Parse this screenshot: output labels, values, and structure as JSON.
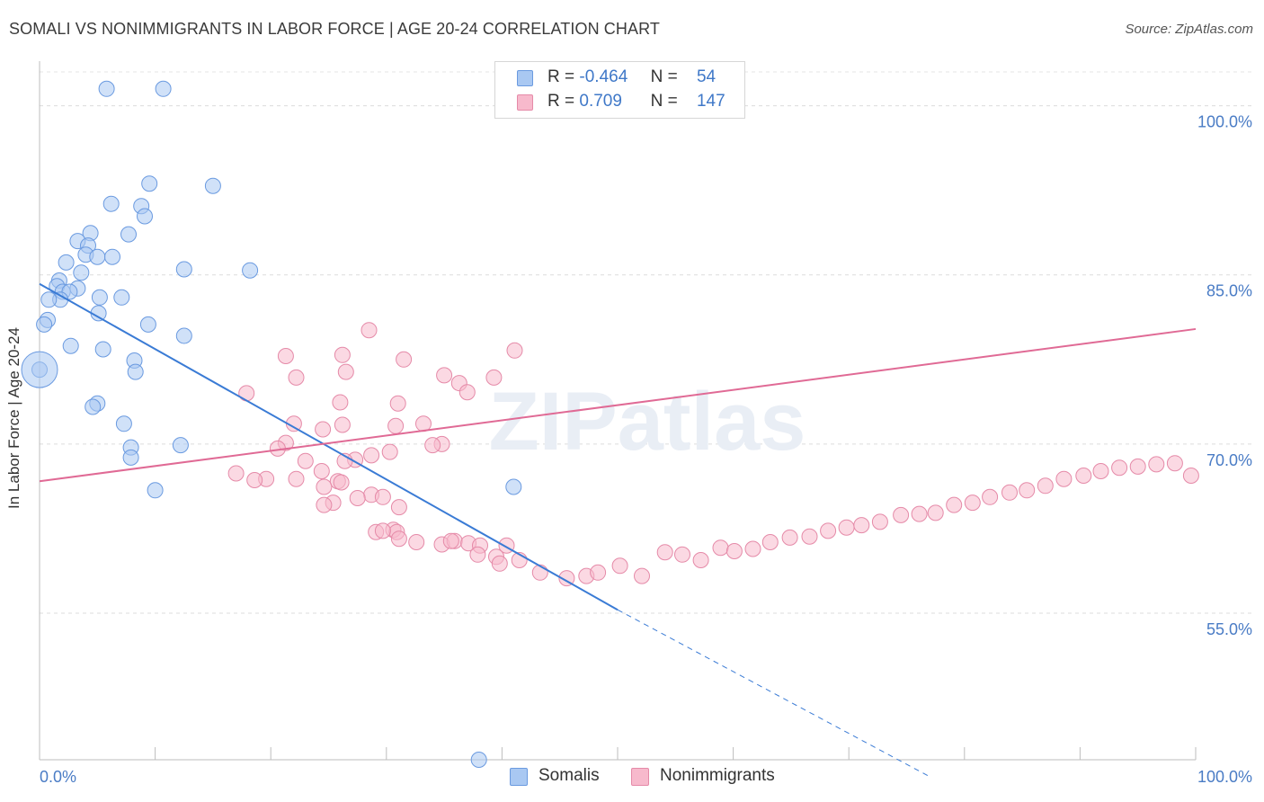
{
  "header": {
    "title": "SOMALI VS NONIMMIGRANTS IN LABOR FORCE | AGE 20-24 CORRELATION CHART",
    "source": "Source: ZipAtlas.com"
  },
  "legend": {
    "rows": [
      {
        "r_label": "R =",
        "r_value": "-0.464",
        "n_label": "N =",
        "n_value": "54",
        "color": "#a9c8f2",
        "border": "#6a9ae0"
      },
      {
        "r_label": "R =",
        "r_value": "0.709",
        "n_label": "N =",
        "n_value": "147",
        "color": "#f7b9cc",
        "border": "#e58aa8"
      }
    ]
  },
  "bottom_legend": {
    "items": [
      {
        "label": "Somalis",
        "color": "#a9c8f2",
        "border": "#6a9ae0"
      },
      {
        "label": "Nonimmigrants",
        "color": "#f7b9cc",
        "border": "#e58aa8"
      }
    ]
  },
  "watermark": "ZIPatlas",
  "chart_data": {
    "type": "scatter",
    "title": "SOMALI VS NONIMMIGRANTS IN LABOR FORCE | AGE 20-24 CORRELATION CHART",
    "xlabel": "",
    "ylabel": "In Labor Force | Age 20-24",
    "xlim": [
      0,
      100
    ],
    "ylim": [
      42,
      103
    ],
    "x_tick_labels": [
      {
        "value": 0,
        "label": "0.0%"
      },
      {
        "value": 100,
        "label": "100.0%"
      }
    ],
    "y_tick_labels": [
      {
        "value": 100,
        "label": "100.0%"
      },
      {
        "value": 85,
        "label": "85.0%"
      },
      {
        "value": 70,
        "label": "70.0%"
      },
      {
        "value": 55,
        "label": "55.0%"
      }
    ],
    "grid": "horizontal dashed",
    "series": [
      {
        "name": "Somalis",
        "color": "#a9c8f2",
        "stroke": "#6a9ae0",
        "trend": {
          "x0": 0,
          "y0": 84.2,
          "x1": 50,
          "y1": 55.3,
          "dash_to_x": 77,
          "dash_to_y": 40.5,
          "color": "#3a7bd5"
        },
        "points": [
          [
            5.8,
            101.5
          ],
          [
            10.7,
            101.5
          ],
          [
            9.5,
            93.1
          ],
          [
            15.0,
            92.9
          ],
          [
            6.2,
            91.3
          ],
          [
            8.8,
            91.1
          ],
          [
            9.1,
            90.2
          ],
          [
            4.4,
            88.7
          ],
          [
            7.7,
            88.6
          ],
          [
            3.3,
            88.0
          ],
          [
            4.2,
            87.6
          ],
          [
            4.0,
            86.8
          ],
          [
            5.0,
            86.6
          ],
          [
            6.3,
            86.6
          ],
          [
            2.3,
            86.1
          ],
          [
            12.5,
            85.5
          ],
          [
            18.2,
            85.4
          ],
          [
            3.6,
            85.2
          ],
          [
            1.7,
            84.5
          ],
          [
            1.5,
            84.0
          ],
          [
            3.3,
            83.8
          ],
          [
            2.0,
            83.5
          ],
          [
            2.6,
            83.5
          ],
          [
            1.8,
            82.8
          ],
          [
            5.2,
            83.0
          ],
          [
            7.1,
            83.0
          ],
          [
            0.8,
            82.8
          ],
          [
            5.1,
            81.6
          ],
          [
            0.7,
            81.0
          ],
          [
            0.4,
            80.6
          ],
          [
            9.4,
            80.6
          ],
          [
            12.5,
            79.6
          ],
          [
            2.7,
            78.7
          ],
          [
            5.5,
            78.4
          ],
          [
            8.2,
            77.4
          ],
          [
            8.3,
            76.4
          ],
          [
            0.0,
            76.6
          ],
          [
            5.0,
            73.6
          ],
          [
            4.6,
            73.3
          ],
          [
            7.3,
            71.8
          ],
          [
            7.9,
            69.7
          ],
          [
            12.2,
            69.9
          ],
          [
            7.9,
            68.8
          ],
          [
            10.0,
            65.9
          ],
          [
            41.0,
            66.2
          ],
          [
            38.0,
            42.0
          ]
        ]
      },
      {
        "name": "Nonimmigrants",
        "color": "#f7b9cc",
        "stroke": "#e58aa8",
        "trend": {
          "x0": 0,
          "y0": 66.7,
          "x1": 100,
          "y1": 80.2,
          "color": "#e06a95"
        },
        "points": [
          [
            28.5,
            80.1
          ],
          [
            21.3,
            77.8
          ],
          [
            31.5,
            77.5
          ],
          [
            26.2,
            77.9
          ],
          [
            41.1,
            78.3
          ],
          [
            26.5,
            76.4
          ],
          [
            22.2,
            75.9
          ],
          [
            17.9,
            74.5
          ],
          [
            26.0,
            73.7
          ],
          [
            35.0,
            76.1
          ],
          [
            39.3,
            75.9
          ],
          [
            36.3,
            75.4
          ],
          [
            37.0,
            74.6
          ],
          [
            31.0,
            73.6
          ],
          [
            30.8,
            71.6
          ],
          [
            26.2,
            71.7
          ],
          [
            24.5,
            71.3
          ],
          [
            22.0,
            71.8
          ],
          [
            21.3,
            70.1
          ],
          [
            20.6,
            69.6
          ],
          [
            34.8,
            70.0
          ],
          [
            33.2,
            71.8
          ],
          [
            34.0,
            69.9
          ],
          [
            30.3,
            69.3
          ],
          [
            28.7,
            69.0
          ],
          [
            27.3,
            68.6
          ],
          [
            26.4,
            68.5
          ],
          [
            23.0,
            68.5
          ],
          [
            24.4,
            67.6
          ],
          [
            17.0,
            67.4
          ],
          [
            19.6,
            66.9
          ],
          [
            18.6,
            66.8
          ],
          [
            22.2,
            66.9
          ],
          [
            25.8,
            66.7
          ],
          [
            26.1,
            66.6
          ],
          [
            24.6,
            66.2
          ],
          [
            25.4,
            64.8
          ],
          [
            24.6,
            64.6
          ],
          [
            28.7,
            65.5
          ],
          [
            27.5,
            65.2
          ],
          [
            29.7,
            65.3
          ],
          [
            31.1,
            64.4
          ],
          [
            30.6,
            62.4
          ],
          [
            30.9,
            62.2
          ],
          [
            29.1,
            62.2
          ],
          [
            29.7,
            62.3
          ],
          [
            31.1,
            61.6
          ],
          [
            32.6,
            61.3
          ],
          [
            34.8,
            61.1
          ],
          [
            35.9,
            61.4
          ],
          [
            35.6,
            61.4
          ],
          [
            37.1,
            61.2
          ],
          [
            38.1,
            61.0
          ],
          [
            40.4,
            61.0
          ],
          [
            39.5,
            60.0
          ],
          [
            37.9,
            60.2
          ],
          [
            39.8,
            59.4
          ],
          [
            41.5,
            59.7
          ],
          [
            43.3,
            58.6
          ],
          [
            45.6,
            58.1
          ],
          [
            47.3,
            58.3
          ],
          [
            48.3,
            58.6
          ],
          [
            50.2,
            59.2
          ],
          [
            52.1,
            58.3
          ],
          [
            54.1,
            60.4
          ],
          [
            55.6,
            60.2
          ],
          [
            57.2,
            59.7
          ],
          [
            58.9,
            60.8
          ],
          [
            60.1,
            60.5
          ],
          [
            61.7,
            60.7
          ],
          [
            63.2,
            61.3
          ],
          [
            64.9,
            61.7
          ],
          [
            66.6,
            61.8
          ],
          [
            68.2,
            62.3
          ],
          [
            69.8,
            62.6
          ],
          [
            71.1,
            62.8
          ],
          [
            72.7,
            63.1
          ],
          [
            74.5,
            63.7
          ],
          [
            76.1,
            63.8
          ],
          [
            77.5,
            63.9
          ],
          [
            79.1,
            64.6
          ],
          [
            80.7,
            64.8
          ],
          [
            82.2,
            65.3
          ],
          [
            83.9,
            65.7
          ],
          [
            85.4,
            65.9
          ],
          [
            87.0,
            66.3
          ],
          [
            88.6,
            66.9
          ],
          [
            90.3,
            67.2
          ],
          [
            91.8,
            67.6
          ],
          [
            93.4,
            67.9
          ],
          [
            95.0,
            68.0
          ],
          [
            96.6,
            68.2
          ],
          [
            98.2,
            68.3
          ],
          [
            99.6,
            67.2
          ]
        ]
      }
    ]
  }
}
